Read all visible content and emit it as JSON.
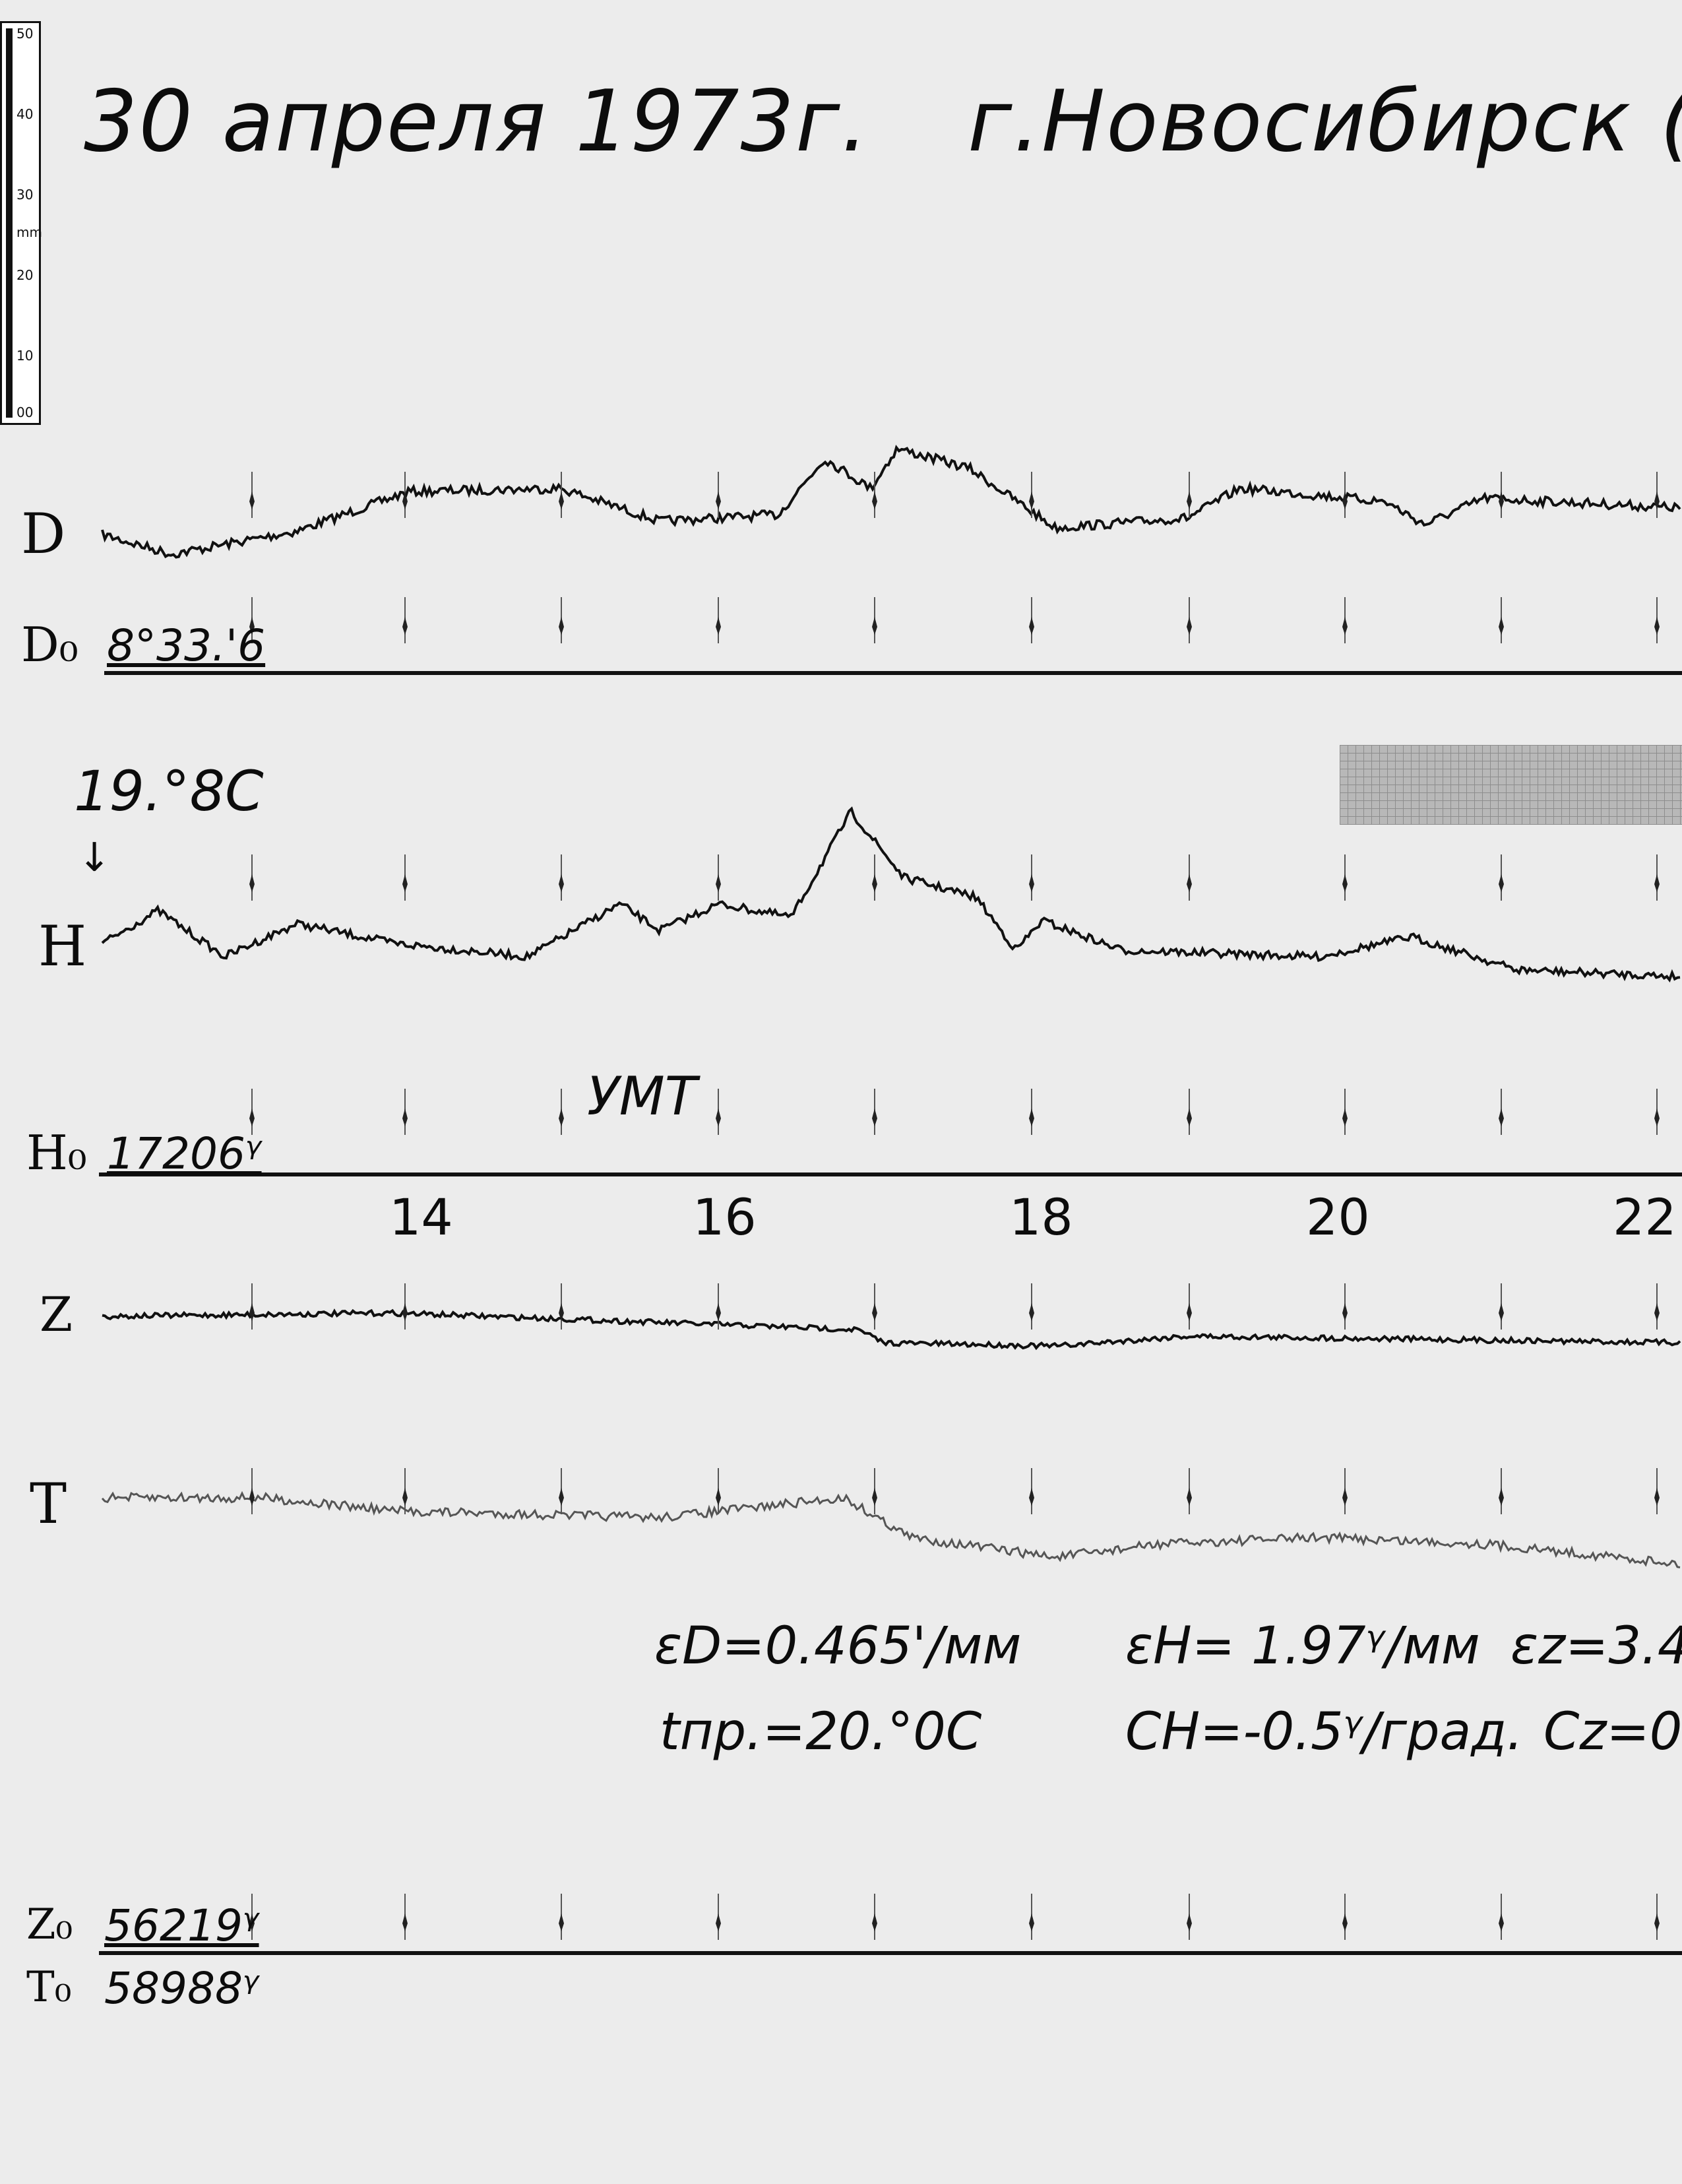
{
  "header": {
    "date": "30 апреля 1973г.",
    "station": "г.Новосибирск (К"
  },
  "ruler": {
    "unit": "mm",
    "ticks": [
      "50",
      "40",
      "30",
      "20",
      "10",
      "00"
    ]
  },
  "channels": {
    "D": {
      "label": "D",
      "baseline_label": "D₀",
      "baseline_value": "8°33.'6"
    },
    "H": {
      "label": "H",
      "baseline_label": "H₀",
      "baseline_value": "17206ᵞ",
      "temperature": "19.°8C"
    },
    "Z": {
      "label": "Z",
      "baseline_label": "Z₀",
      "baseline_value": "56219ᵞ"
    },
    "T": {
      "label": "T",
      "baseline_label": "T₀",
      "baseline_value": "58988ᵞ"
    }
  },
  "time_axis": {
    "label": "УМТ",
    "hours": [
      "14",
      "16",
      "18",
      "20",
      "22"
    ]
  },
  "constants": {
    "eps_d": "εD=0.465'/мм",
    "eps_h": "εH= 1.97ᵞ/мм",
    "eps_z": "εz=3.4",
    "t_pr": "tпр.=20.°0C",
    "c_h": "CH=-0.5ᵞ/град.",
    "c_z": "Cz=0"
  }
}
